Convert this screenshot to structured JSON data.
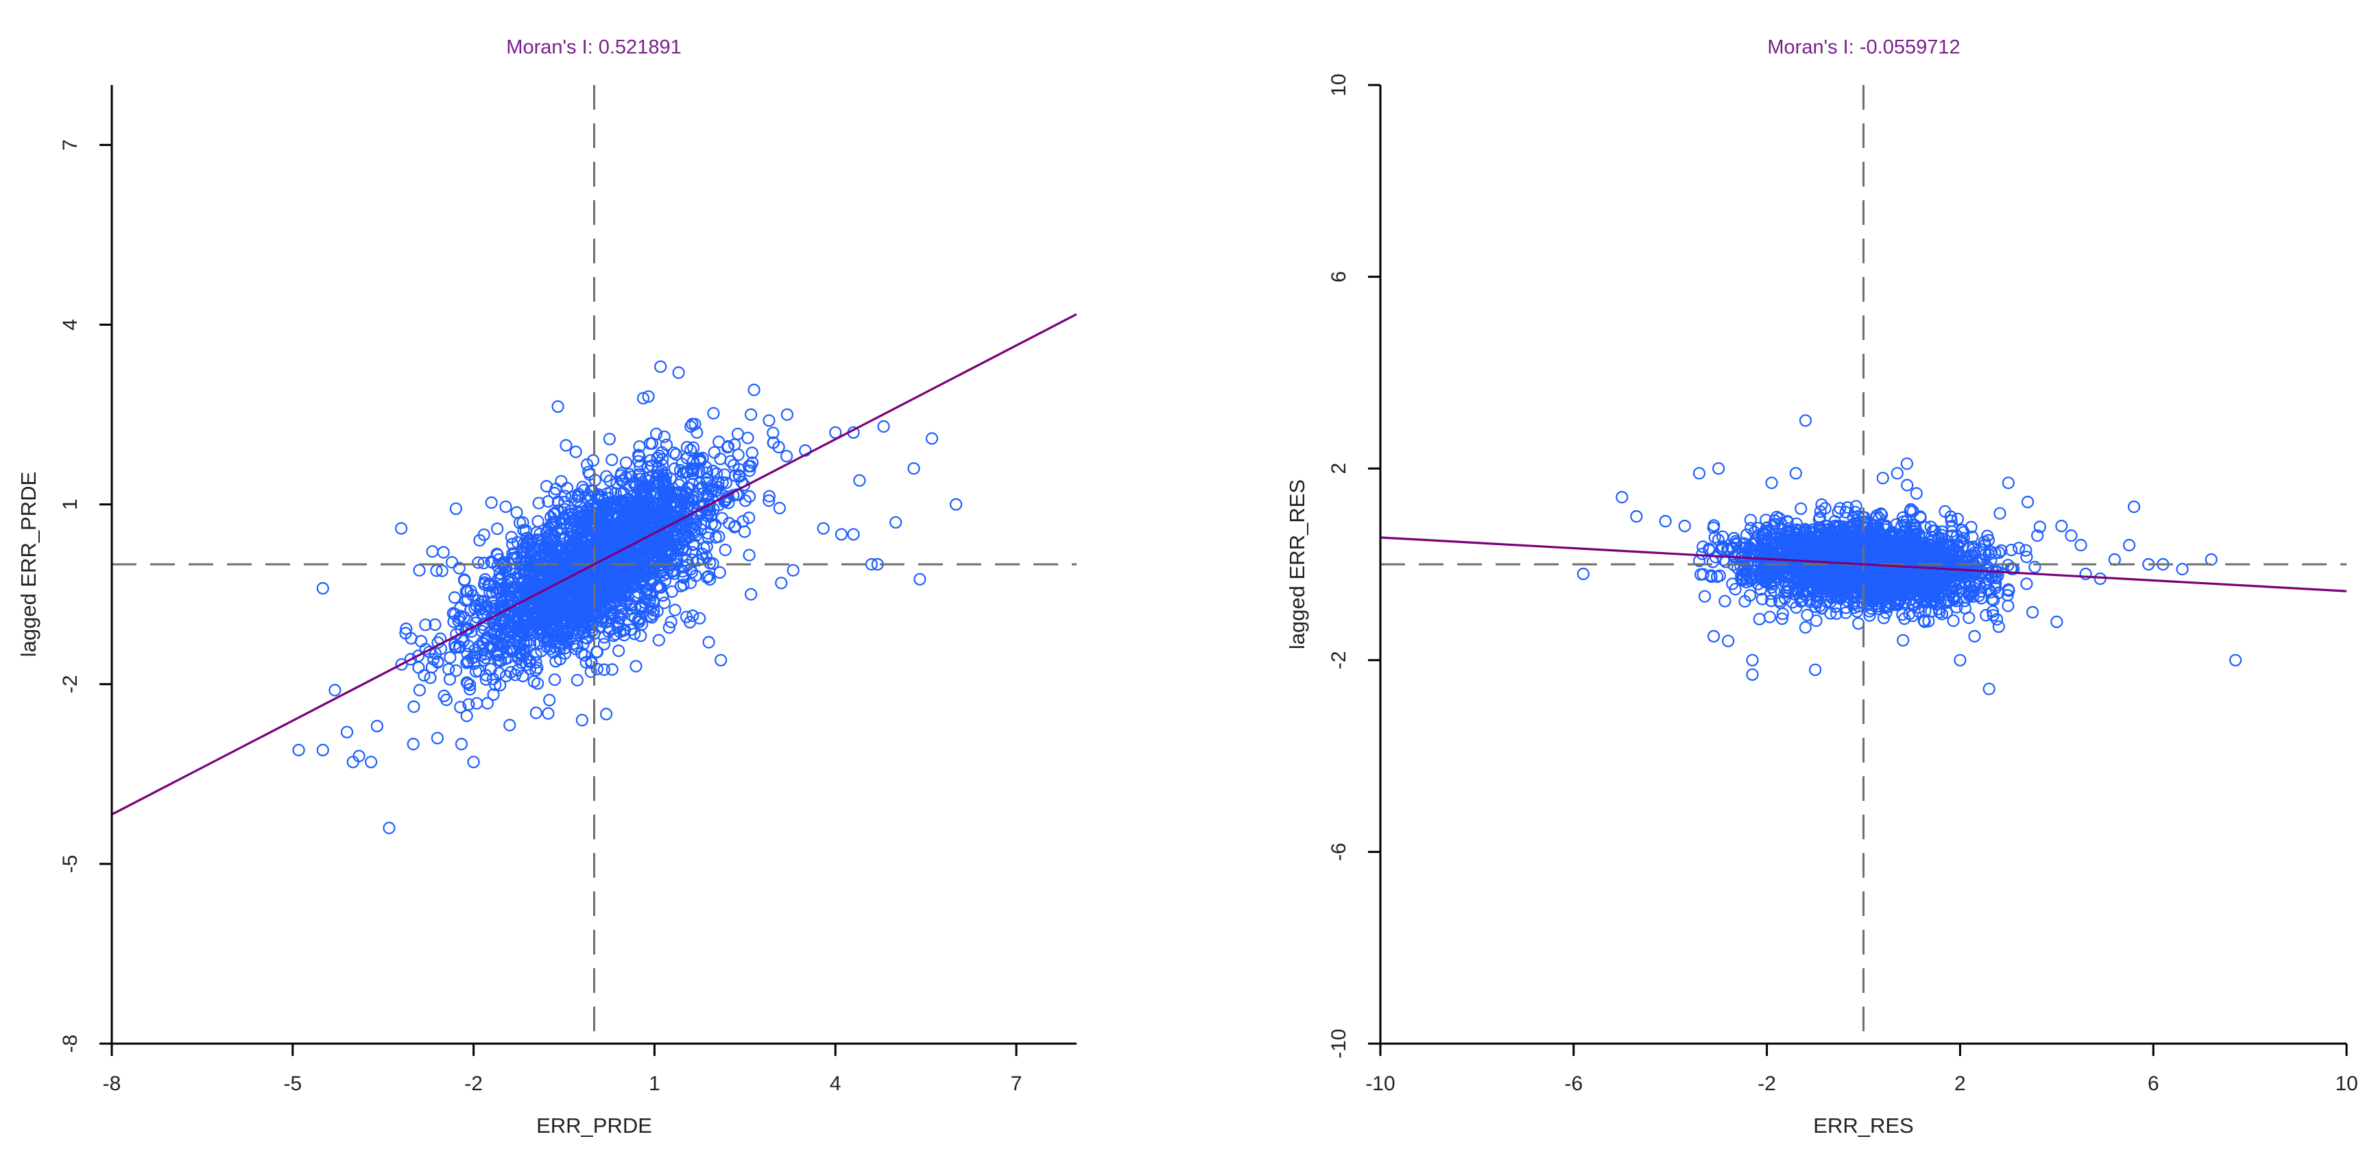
{
  "colors": {
    "points": "#1f5fff",
    "regression": "#7a007a",
    "title": "#7a1f8a",
    "reference_lines": "#6e6e6e",
    "axis": "#000000"
  },
  "chart_data": [
    {
      "type": "scatter",
      "title": "Moran's I: 0.521891",
      "xlabel": "ERR_PRDE",
      "ylabel": "lagged ERR_PRDE",
      "xlim": [
        -8,
        8
      ],
      "ylim": [
        -8,
        8
      ],
      "xticks": [
        -8,
        -5,
        -2,
        1,
        4,
        7
      ],
      "yticks": [
        -8,
        -5,
        -2,
        1,
        4,
        7
      ],
      "xtick_labels": [
        "-8",
        "-5",
        "-2",
        "1",
        "4",
        "7"
      ],
      "ytick_labels": [
        "-8",
        "-5",
        "-2",
        "1",
        "4",
        "7"
      ],
      "mean_x": 0,
      "mean_y": 0,
      "regression": {
        "slope": 0.5219,
        "intercept": 0
      },
      "cloud": {
        "x_sd": 1.05,
        "noise_sd": 0.62,
        "count": 2600,
        "x_range": [
          -3.2,
          4.0
        ]
      },
      "outliers": [
        [
          -4.5,
          -0.4
        ],
        [
          -4.9,
          -3.1
        ],
        [
          -4.5,
          -3.1
        ],
        [
          -4.0,
          -3.3
        ],
        [
          -3.9,
          -3.2
        ],
        [
          -3.7,
          -3.3
        ],
        [
          -3.4,
          -4.4
        ],
        [
          -3.2,
          0.6
        ],
        [
          -2.9,
          -0.1
        ],
        [
          -4.1,
          -2.8
        ],
        [
          -4.3,
          -2.1
        ],
        [
          -3.6,
          -2.7
        ],
        [
          -3.0,
          -3.0
        ],
        [
          -2.6,
          -2.9
        ],
        [
          -2.2,
          -3.0
        ],
        [
          -2.5,
          0.2
        ],
        [
          -1.9,
          0.4
        ],
        [
          -2.0,
          -3.3
        ],
        [
          1.1,
          3.3
        ],
        [
          1.4,
          3.2
        ],
        [
          1.6,
          2.3
        ],
        [
          0.9,
          2.8
        ],
        [
          2.6,
          2.5
        ],
        [
          2.9,
          2.4
        ],
        [
          3.2,
          2.5
        ],
        [
          3.5,
          1.9
        ],
        [
          4.0,
          2.2
        ],
        [
          4.3,
          2.2
        ],
        [
          4.8,
          2.3
        ],
        [
          5.3,
          1.6
        ],
        [
          5.6,
          2.1
        ],
        [
          6.0,
          1.0
        ],
        [
          5.0,
          0.7
        ],
        [
          5.4,
          -0.25
        ],
        [
          4.7,
          0.0
        ],
        [
          4.6,
          0.0
        ],
        [
          4.3,
          0.5
        ],
        [
          4.1,
          0.5
        ],
        [
          4.4,
          1.4
        ],
        [
          3.8,
          0.6
        ],
        [
          3.3,
          -0.1
        ],
        [
          2.6,
          -0.5
        ],
        [
          1.9,
          -1.3
        ],
        [
          2.1,
          -1.6
        ],
        [
          0.2,
          -2.5
        ],
        [
          -0.2,
          -2.6
        ]
      ]
    },
    {
      "type": "scatter",
      "title": "Moran's I: -0.0559712",
      "xlabel": "ERR_RES",
      "ylabel": "lagged ERR_RES",
      "xlim": [
        -10,
        10
      ],
      "ylim": [
        -10,
        10
      ],
      "xticks": [
        -10,
        -6,
        -2,
        2,
        6,
        10
      ],
      "yticks": [
        -10,
        -6,
        -2,
        2,
        6,
        10
      ],
      "xtick_labels": [
        "-10",
        "-6",
        "-2",
        "2",
        "6",
        "10"
      ],
      "ytick_labels": [
        "-10",
        "-6",
        "-2",
        "2",
        "6",
        "10"
      ],
      "mean_x": 0,
      "mean_y": 0,
      "regression": {
        "slope": -0.056,
        "intercept": 0
      },
      "cloud": {
        "x_sd": 1.2,
        "noise_sd": 0.42,
        "count": 2600,
        "x_range": [
          -3.5,
          4.0
        ]
      },
      "outliers": [
        [
          -5.8,
          -0.2
        ],
        [
          -5.0,
          1.4
        ],
        [
          -4.7,
          1.0
        ],
        [
          -4.1,
          0.9
        ],
        [
          -3.7,
          0.8
        ],
        [
          -3.4,
          1.9
        ],
        [
          -3.0,
          2.0
        ],
        [
          -3.1,
          -1.5
        ],
        [
          -2.8,
          -1.6
        ],
        [
          -2.3,
          -2.0
        ],
        [
          -2.3,
          -2.3
        ],
        [
          -1.9,
          1.7
        ],
        [
          -1.4,
          1.9
        ],
        [
          -1.2,
          3.0
        ],
        [
          -1.0,
          -2.2
        ],
        [
          0.4,
          1.8
        ],
        [
          0.7,
          1.9
        ],
        [
          0.9,
          2.1
        ],
        [
          2.0,
          -2.0
        ],
        [
          2.3,
          -1.5
        ],
        [
          2.6,
          -2.6
        ],
        [
          3.0,
          1.7
        ],
        [
          3.4,
          1.3
        ],
        [
          3.6,
          0.6
        ],
        [
          4.1,
          0.8
        ],
        [
          4.3,
          0.6
        ],
        [
          4.5,
          0.4
        ],
        [
          4.6,
          -0.2
        ],
        [
          4.9,
          -0.3
        ],
        [
          5.2,
          0.1
        ],
        [
          5.5,
          0.4
        ],
        [
          5.6,
          1.2
        ],
        [
          5.9,
          0.0
        ],
        [
          6.2,
          0.0
        ],
        [
          6.6,
          -0.1
        ],
        [
          7.2,
          0.1
        ],
        [
          7.7,
          -2.0
        ],
        [
          4.0,
          -1.2
        ],
        [
          3.5,
          -1.0
        ],
        [
          2.8,
          -1.3
        ]
      ]
    }
  ]
}
